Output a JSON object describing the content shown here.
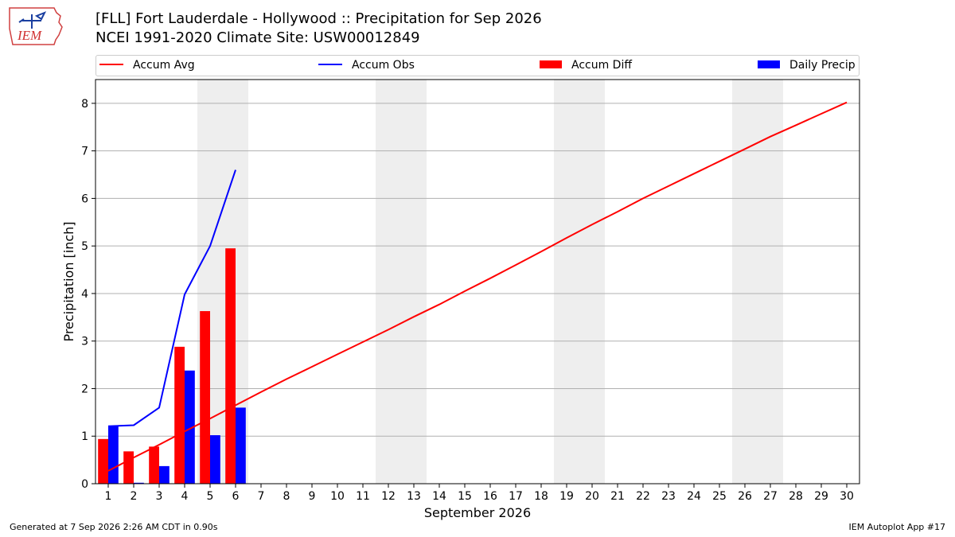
{
  "header": {
    "title_line1": "[FLL] Fort Lauderdale - Hollywood :: Precipitation for Sep 2026",
    "title_line2": "NCEI 1991-2020 Climate Site: USW00012849",
    "logo_text": "IEM"
  },
  "legend": {
    "accum_avg": "Accum Avg",
    "accum_obs": "Accum Obs",
    "accum_diff": "Accum Diff",
    "daily_precip": "Daily Precip"
  },
  "colors": {
    "accum_avg": "#ff0000",
    "accum_obs": "#0000ff",
    "accum_diff": "#ff0000",
    "daily_precip": "#0000ff",
    "weekend_shade": "#eeeeee",
    "grid": "#b0b0b0"
  },
  "footer": {
    "generated": "Generated at 7 Sep 2026 2:26 AM CDT in 0.90s",
    "app": "IEM Autoplot App #17"
  },
  "chart_data": {
    "type": "bar",
    "xlabel": "September 2026",
    "ylabel": "Precipitation [inch]",
    "xlim": [
      0.5,
      30.5
    ],
    "ylim": [
      0,
      8.5
    ],
    "yticks": [
      0,
      1,
      2,
      3,
      4,
      5,
      6,
      7,
      8
    ],
    "categories": [
      "1",
      "2",
      "3",
      "4",
      "5",
      "6",
      "7",
      "8",
      "9",
      "10",
      "11",
      "12",
      "13",
      "14",
      "15",
      "16",
      "17",
      "18",
      "19",
      "20",
      "21",
      "22",
      "23",
      "24",
      "25",
      "26",
      "27",
      "28",
      "29",
      "30"
    ],
    "grid": true,
    "legend_position": "top",
    "shaded_days": [
      [
        5,
        6
      ],
      [
        12,
        13
      ],
      [
        19,
        20
      ],
      [
        26,
        27
      ]
    ],
    "series": [
      {
        "name": "Accum Avg",
        "kind": "line",
        "x": [
          1,
          2,
          3,
          4,
          5,
          6,
          7,
          8,
          9,
          10,
          11,
          12,
          13,
          14,
          15,
          16,
          17,
          18,
          19,
          20,
          21,
          22,
          23,
          24,
          25,
          26,
          27,
          28,
          29,
          30
        ],
        "values": [
          0.27,
          0.55,
          0.82,
          1.1,
          1.37,
          1.65,
          1.93,
          2.2,
          2.46,
          2.72,
          2.98,
          3.24,
          3.51,
          3.77,
          4.05,
          4.32,
          4.6,
          4.88,
          5.17,
          5.45,
          5.72,
          6.0,
          6.26,
          6.52,
          6.78,
          7.04,
          7.3,
          7.54,
          7.78,
          8.02
        ]
      },
      {
        "name": "Accum Obs",
        "kind": "line",
        "x": [
          1,
          2,
          3,
          4,
          5,
          6
        ],
        "values": [
          1.21,
          1.23,
          1.6,
          3.98,
          5.0,
          6.6
        ]
      },
      {
        "name": "Accum Diff",
        "kind": "bar",
        "x": [
          1,
          2,
          3,
          4,
          5,
          6
        ],
        "values": [
          0.94,
          0.68,
          0.78,
          2.88,
          3.63,
          4.95
        ]
      },
      {
        "name": "Daily Precip",
        "kind": "bar",
        "x": [
          1,
          2,
          3,
          4,
          5,
          6
        ],
        "values": [
          1.21,
          0.02,
          0.37,
          2.38,
          1.02,
          1.6
        ]
      }
    ]
  }
}
